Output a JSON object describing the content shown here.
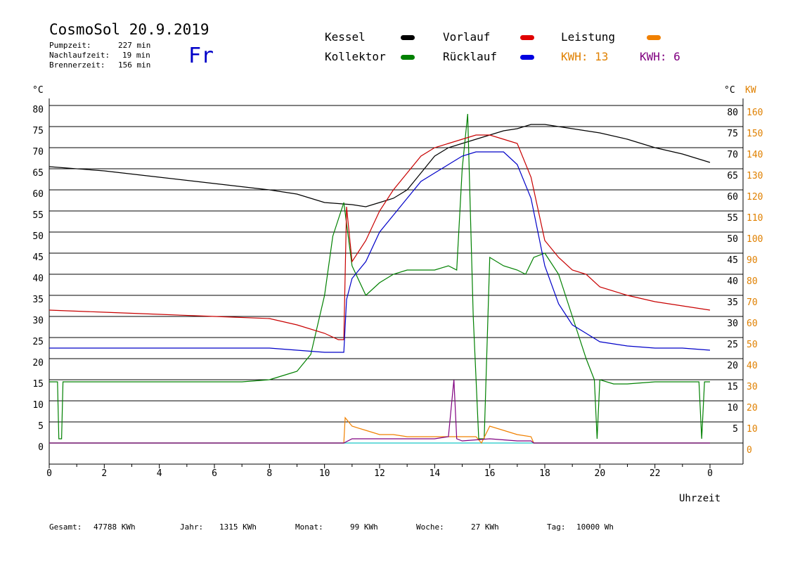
{
  "header": {
    "title": "CosmoSol 20.9.2019",
    "day": "Fr",
    "stats": [
      {
        "label": "Pumpzeit:",
        "value": "227 min"
      },
      {
        "label": "Nachlaufzeit:",
        "value": "19 min"
      },
      {
        "label": "Brennerzeit:",
        "value": "156 min"
      }
    ]
  },
  "legend": {
    "kessel": "Kessel",
    "kollektor": "Kollektor",
    "vorlauf": "Vorlauf",
    "ruecklauf": "Rücklauf",
    "leistung": "Leistung",
    "kwh1": "KWH: 13",
    "kwh2": "KWH: 6"
  },
  "axes": {
    "left_unit": "°C",
    "right_unit_c": "°C",
    "right_unit_kw": "KW",
    "x_label": "Uhrzeit"
  },
  "footer": {
    "gesamt_label": "Gesamt:",
    "gesamt_value": "47788 KWh",
    "jahr_label": "Jahr:",
    "jahr_value": "1315 KWh",
    "monat_label": "Monat:",
    "monat_value": "99 KWh",
    "woche_label": "Woche:",
    "woche_value": "27 KWh",
    "tag_label": "Tag:",
    "tag_value": "10000 Wh"
  },
  "colors": {
    "kessel": "#000000",
    "kollektor": "#008000",
    "vorlauf": "#c80000",
    "ruecklauf": "#0000c8",
    "leistung": "#f08000",
    "kwh2": "#800080",
    "pump": "#40d0d0",
    "kw_axis": "#e08000"
  },
  "chart_data": {
    "type": "line",
    "xlabel": "Uhrzeit",
    "ylabel": "°C",
    "xlim": [
      0,
      24
    ],
    "ylim": [
      0,
      80
    ],
    "y2lim": [
      0,
      160
    ],
    "y2label": "KW",
    "x_ticks": [
      "0",
      "2",
      "4",
      "6",
      "8",
      "10",
      "12",
      "14",
      "16",
      "18",
      "20",
      "22",
      "0"
    ],
    "y_ticks_left": [
      "0",
      "5",
      "10",
      "15",
      "20",
      "25",
      "30",
      "35",
      "40",
      "45",
      "50",
      "55",
      "60",
      "65",
      "70",
      "75",
      "80"
    ],
    "y_ticks_right": [
      "5",
      "10",
      "15",
      "20",
      "25",
      "30",
      "35",
      "40",
      "45",
      "50",
      "55",
      "60",
      "65",
      "70",
      "75",
      "80"
    ],
    "y2_ticks": [
      "0",
      "10",
      "20",
      "30",
      "40",
      "50",
      "60",
      "70",
      "80",
      "90",
      "100",
      "110",
      "120",
      "130",
      "140",
      "150",
      "160"
    ],
    "grid": "horizontal",
    "series": [
      {
        "name": "Kessel",
        "color": "#000000",
        "x": [
          0,
          2,
          4,
          6,
          8,
          9,
          10,
          11,
          11.5,
          12,
          12.5,
          13,
          13.5,
          14,
          14.5,
          15,
          15.5,
          16,
          16.5,
          17,
          17.5,
          18,
          19,
          20,
          21,
          22,
          23,
          24
        ],
        "y": [
          65.5,
          64.5,
          63,
          61.5,
          60,
          59,
          57,
          56.5,
          56,
          57,
          58,
          60,
          64,
          68,
          70,
          71,
          72,
          73,
          74,
          74.5,
          75.5,
          75.5,
          74.5,
          73.5,
          72,
          70,
          68.5,
          66.5
        ]
      },
      {
        "name": "Kollektor",
        "color": "#008000",
        "x": [
          0,
          0.3,
          0.35,
          0.45,
          0.5,
          2,
          4,
          6,
          7,
          8,
          8.5,
          9,
          9.5,
          10,
          10.3,
          10.7,
          11,
          11.5,
          12,
          12.5,
          13,
          13.5,
          14,
          14.5,
          14.8,
          15,
          15.2,
          15.4,
          15.6,
          15.8,
          16,
          16.5,
          17,
          17.3,
          17.6,
          18,
          18.5,
          19,
          19.5,
          19.8,
          19.9,
          20,
          20.5,
          21,
          22,
          23,
          23.6,
          23.7,
          23.8,
          24
        ],
        "y": [
          14.5,
          14.5,
          1,
          1,
          14.5,
          14.5,
          14.5,
          14.5,
          14.5,
          15,
          16,
          17,
          21,
          35,
          49,
          57,
          42,
          35,
          38,
          40,
          41,
          41,
          41,
          42,
          41,
          65,
          78,
          30,
          1,
          1,
          44,
          42,
          41,
          40,
          44,
          45,
          40,
          30,
          20,
          15,
          1,
          15,
          14,
          14,
          14.5,
          14.5,
          14.5,
          1,
          14.5,
          14.5
        ]
      },
      {
        "name": "Vorlauf",
        "color": "#c80000",
        "x": [
          0,
          2,
          4,
          6,
          8,
          9,
          10,
          10.5,
          10.7,
          10.8,
          11,
          11.5,
          12,
          12.5,
          13,
          13.5,
          14,
          14.5,
          15,
          15.5,
          16,
          16.5,
          17,
          17.5,
          18,
          18.5,
          19,
          19.5,
          20,
          21,
          22,
          23,
          24
        ],
        "y": [
          31.5,
          31,
          30.5,
          30,
          29.5,
          28,
          26,
          24.5,
          24.5,
          56,
          43,
          48,
          55,
          60,
          64,
          68,
          70,
          71,
          72,
          73,
          73,
          72,
          71,
          63,
          48,
          44,
          41,
          40,
          37,
          35,
          33.5,
          32.5,
          31.5
        ]
      },
      {
        "name": "Rücklauf",
        "color": "#0000c8",
        "x": [
          0,
          2,
          4,
          6,
          8,
          9,
          10,
          10.5,
          10.7,
          10.8,
          11,
          11.5,
          12,
          12.5,
          13,
          13.5,
          14,
          14.5,
          15,
          15.5,
          16,
          16.5,
          17,
          17.5,
          18,
          18.5,
          19,
          19.5,
          20,
          21,
          22,
          23,
          24
        ],
        "y": [
          22.5,
          22.5,
          22.5,
          22.5,
          22.5,
          22,
          21.5,
          21.5,
          21.5,
          34,
          39,
          43,
          50,
          54,
          58,
          62,
          64,
          66,
          68,
          69,
          69,
          69,
          66,
          58,
          42,
          33,
          28,
          26,
          24,
          23,
          22.5,
          22.5,
          22
        ]
      },
      {
        "name": "Leistung",
        "color": "#f08000",
        "axis": "right",
        "x": [
          0,
          10.7,
          10.75,
          11,
          11.5,
          12,
          12.5,
          13,
          13.5,
          14,
          14.5,
          15,
          15.5,
          15.7,
          16,
          16.5,
          17,
          17.5,
          17.6,
          24
        ],
        "y": [
          0,
          0,
          12,
          8,
          6,
          4,
          4,
          3,
          3,
          3,
          3,
          3,
          3,
          0,
          8,
          6,
          4,
          3,
          0,
          0
        ]
      },
      {
        "name": "KWH: 6",
        "color": "#800080",
        "axis": "right",
        "x": [
          0,
          10.7,
          11,
          12,
          13,
          14,
          14.5,
          14.7,
          14.8,
          15,
          16,
          17,
          17.5,
          17.6,
          24
        ],
        "y": [
          0,
          0,
          2,
          2,
          2,
          2,
          3,
          30,
          2,
          1,
          2,
          1,
          1,
          0,
          0
        ]
      }
    ]
  }
}
